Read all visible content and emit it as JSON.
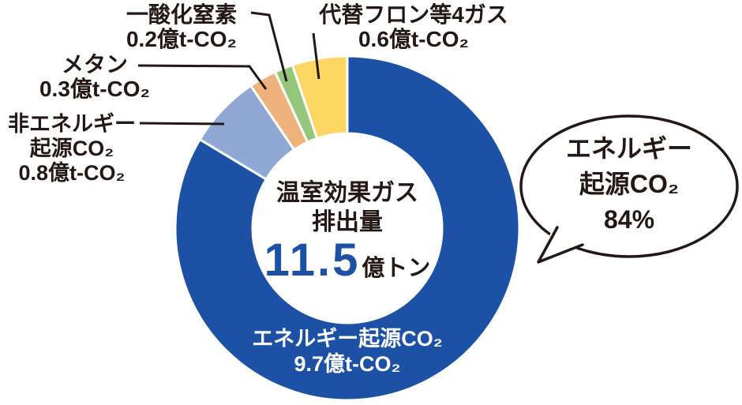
{
  "chart_data": {
    "type": "pie",
    "variant": "donut",
    "direction": "clockwise",
    "start_angle_deg": 0,
    "separator_color": "#ffffff",
    "center": {
      "title_line1": "温室効果ガス",
      "title_line2": "排出量",
      "total_value": "11.5",
      "total_unit": "億トン"
    },
    "segments": [
      {
        "id": "energy_co2",
        "label": "エネルギー起源CO₂",
        "value": 9.7,
        "amount_label": "9.7億t-CO₂",
        "color": "#1d51a5",
        "percent": "84%"
      },
      {
        "id": "non_energy_co2",
        "label": "非エネルギー起源CO₂",
        "value": 0.8,
        "amount_label": "0.8億t-CO₂",
        "color": "#8fa8d4"
      },
      {
        "id": "methane",
        "label": "メタン",
        "value": 0.3,
        "amount_label": "0.3億t-CO₂",
        "color": "#f0b27c"
      },
      {
        "id": "n2o",
        "label": "一酸化窒素",
        "value": 0.2,
        "amount_label": "0.2億t-CO₂",
        "color": "#94c77c"
      },
      {
        "id": "hfc",
        "label": "代替フロン等4ガス",
        "value": 0.6,
        "amount_label": "0.6億t-CO₂",
        "color": "#fbd663"
      }
    ]
  },
  "labels": {
    "n2o": {
      "line1": "一酸化窒素",
      "line2": "0.2億t-CO₂"
    },
    "hfc": {
      "line1": "代替フロン等4ガス",
      "line2": "0.6億t-CO₂"
    },
    "methane": {
      "line1": "メタン",
      "line2": "0.3億t-CO₂"
    },
    "non_energy": {
      "line1": "非エネルギー",
      "line2": "起源CO₂",
      "line3": "0.8億t-CO₂"
    },
    "energy_inner": {
      "line1": "エネルギー起源CO₂",
      "line2": "9.7億t-CO₂"
    }
  },
  "callout": {
    "line1": "エネルギー",
    "line2": "起源CO₂",
    "line3": "84%"
  },
  "colors": {
    "text": "#231815",
    "accent_blue": "#1d51a5",
    "background": "#ffffff"
  }
}
